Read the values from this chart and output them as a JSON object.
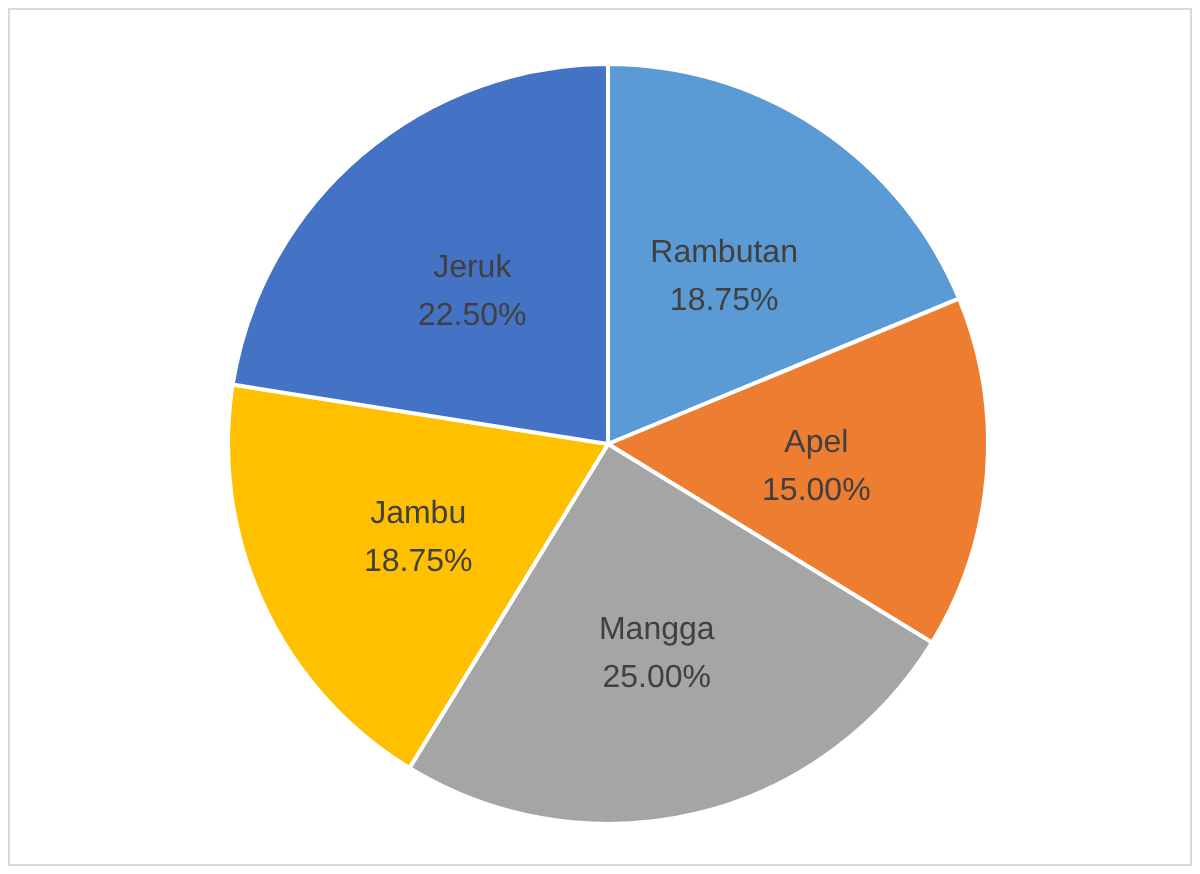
{
  "chart_data": {
    "type": "pie",
    "categories": [
      "Rambutan",
      "Apel",
      "Mangga",
      "Jambu",
      "Jeruk"
    ],
    "values": [
      18.75,
      15,
      25,
      18.75,
      22.5
    ],
    "value_labels": [
      "18.75%",
      "15.00%",
      "25.00%",
      "18.75%",
      "22.50%"
    ],
    "colors": [
      "#5b9bd5",
      "#ed7d31",
      "#a5a5a5",
      "#ffc000",
      "#4472c4"
    ],
    "legend": false
  }
}
